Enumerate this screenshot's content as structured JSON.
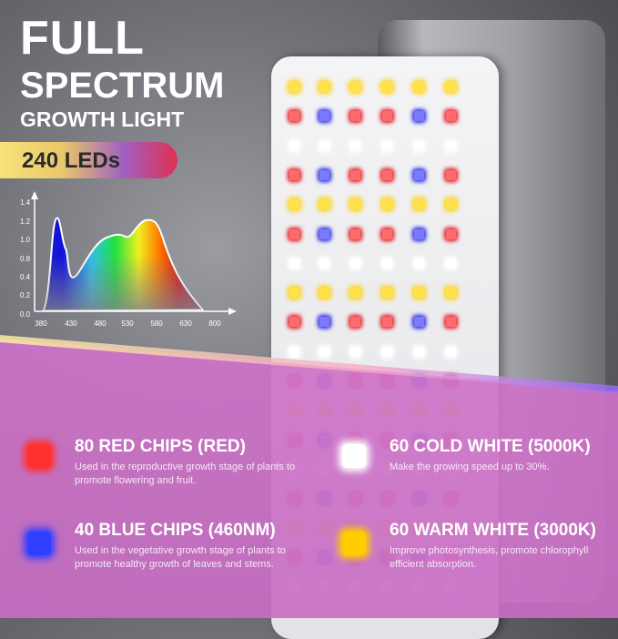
{
  "headline": {
    "line1": "FULL",
    "line2": "SPECTRUM",
    "line3": "GROWTH LIGHT",
    "badge": "240 LEDs"
  },
  "spectrum": {
    "y_ticks": [
      "1.4",
      "1.2",
      "1.0",
      "0.8",
      "0.4",
      "0.2",
      "0.0"
    ],
    "x_ticks": [
      "380",
      "430",
      "480",
      "530",
      "580",
      "630",
      "800"
    ]
  },
  "features": [
    {
      "title": "80 RED CHIPS (RED)",
      "desc": "Used in the reproductive growth stage of plants to promote flowering and fruit.",
      "color": "#ff3030",
      "icon": "red-led-chip-icon"
    },
    {
      "title": "60 COLD WHITE (5000K)",
      "desc": "Make the growing speed up to 30%.",
      "color": "#ffffff",
      "icon": "white-led-chip-icon"
    },
    {
      "title": "40 BLUE CHIPS (460NM)",
      "desc": "Used in the vegetative growth stage of plants to promote healthy growth of leaves and stems.",
      "color": "#3040ff",
      "icon": "blue-led-chip-icon"
    },
    {
      "title": "60 WARM WHITE (3000K)",
      "desc": "Improve photosynthesis, promote chlorophyll efficient absorption.",
      "color": "#ffcc00",
      "icon": "yellow-led-chip-icon"
    }
  ],
  "led_rows": [
    "yyyyyy",
    "rbrrbr",
    "wwwwww",
    "rbrrbr",
    "yyyyyy",
    "rbrrbr",
    "wwwwww",
    "yyyyyy",
    "rbrrbr",
    "wwwwww",
    "rbrrbr",
    "yyyyyy",
    "rbrrbr",
    "wwwwww",
    "rbrrbr",
    "yyyyyy",
    "rbrrbr",
    "wwwwww"
  ]
}
